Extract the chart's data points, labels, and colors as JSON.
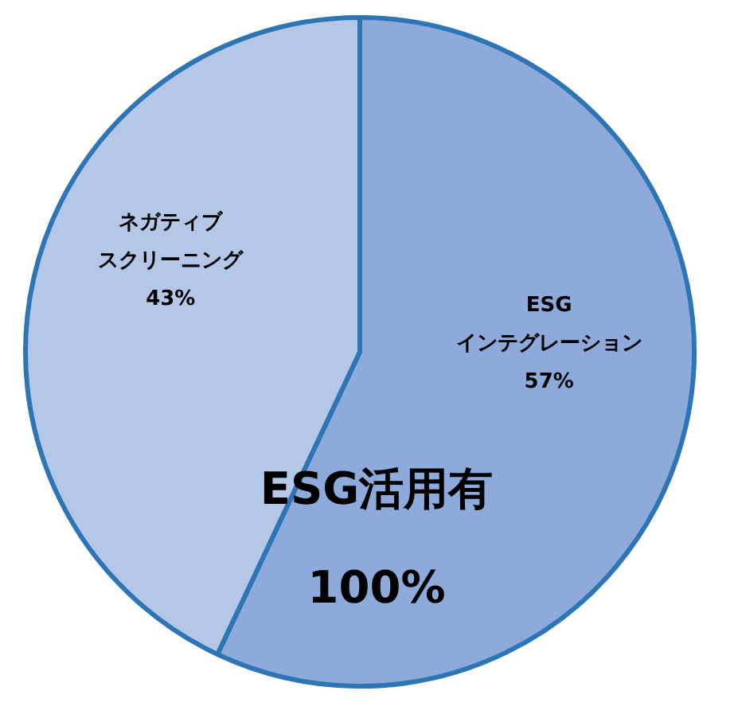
{
  "chart_data": {
    "type": "pie",
    "categories": [
      "ESGインテグレーション",
      "ネガティブスクリーニング"
    ],
    "values": [
      57,
      43
    ],
    "colors": [
      "#8eaadb",
      "#b4c7e7"
    ],
    "value_labels": [
      "57%",
      "43%"
    ],
    "annotations": [
      "ESG活用有",
      "100%"
    ]
  }
}
